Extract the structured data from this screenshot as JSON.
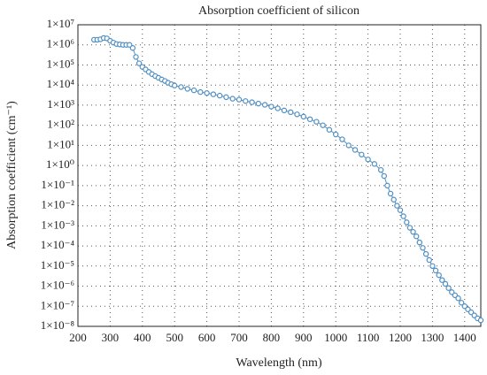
{
  "chart_data": {
    "type": "line",
    "markers": true,
    "title": "Absorption coefficient of silicon",
    "x_label": "Wavelength (nm)",
    "y_label": "Absorption coefficient (cm⁻¹)",
    "y_scale": "log",
    "grid": true,
    "color": "#4f8fc4",
    "x": [
      250,
      260,
      270,
      280,
      290,
      300,
      310,
      320,
      330,
      340,
      350,
      360,
      370,
      380,
      390,
      400,
      410,
      420,
      430,
      440,
      450,
      460,
      470,
      480,
      490,
      500,
      520,
      540,
      560,
      580,
      600,
      620,
      640,
      660,
      680,
      700,
      720,
      740,
      760,
      780,
      800,
      820,
      840,
      860,
      880,
      900,
      920,
      940,
      960,
      980,
      1000,
      1020,
      1040,
      1060,
      1080,
      1100,
      1120,
      1140,
      1150,
      1160,
      1170,
      1180,
      1190,
      1200,
      1210,
      1220,
      1230,
      1240,
      1250,
      1260,
      1270,
      1280,
      1290,
      1300,
      1310,
      1320,
      1330,
      1340,
      1350,
      1360,
      1370,
      1380,
      1390,
      1400,
      1410,
      1420,
      1430,
      1440,
      1450
    ],
    "values": [
      1800000,
      1800000,
      1900000,
      2200000,
      2100000,
      1600000,
      1300000,
      1100000,
      1050000,
      1000000,
      1000000,
      1000000,
      700000,
      250000,
      120000,
      80000,
      60000,
      45000,
      35000,
      28000,
      23000,
      19000,
      16000,
      13000,
      11000,
      9500,
      8000,
      6500,
      5500,
      4500,
      4000,
      3500,
      3000,
      2500,
      2100,
      1900,
      1600,
      1400,
      1200,
      1050,
      850,
      700,
      550,
      450,
      350,
      270,
      200,
      150,
      100,
      60,
      35,
      20,
      10,
      6,
      3.5,
      2,
      1.2,
      0.6,
      0.3,
      0.1,
      0.04,
      0.02,
      0.01,
      0.006,
      0.003,
      0.0015,
      0.0008,
      0.0005,
      0.0003,
      0.00015,
      8e-05,
      4e-05,
      2e-05,
      1e-05,
      6e-06,
      3.5e-06,
      2e-06,
      1.3e-06,
      8e-07,
      5e-07,
      3.5e-07,
      2.5e-07,
      1.5e-07,
      1e-07,
      7e-08,
      5e-08,
      3.5e-08,
      2.5e-08,
      2e-08
    ],
    "xlim": [
      200,
      1450
    ],
    "xticks": [
      200,
      300,
      400,
      500,
      600,
      700,
      800,
      900,
      1000,
      1100,
      1200,
      1300,
      1400
    ],
    "ylim": [
      1e-08,
      10000000.0
    ],
    "yticks": [
      {
        "value": 1e-08,
        "label": "1×10⁻⁸"
      },
      {
        "value": 1e-07,
        "label": "1×10⁻⁷"
      },
      {
        "value": 1e-06,
        "label": "1×10⁻⁶"
      },
      {
        "value": 1e-05,
        "label": "1×10⁻⁵"
      },
      {
        "value": 0.0001,
        "label": "1×10⁻⁴"
      },
      {
        "value": 0.001,
        "label": "1×10⁻³"
      },
      {
        "value": 0.01,
        "label": "1×10⁻²"
      },
      {
        "value": 0.1,
        "label": "1×10⁻¹"
      },
      {
        "value": 1,
        "label": "1×10⁰"
      },
      {
        "value": 10,
        "label": "1×10¹"
      },
      {
        "value": 100,
        "label": "1×10²"
      },
      {
        "value": 1000,
        "label": "1×10³"
      },
      {
        "value": 10000,
        "label": "1×10⁴"
      },
      {
        "value": 100000,
        "label": "1×10⁵"
      },
      {
        "value": 1000000,
        "label": "1×10⁶"
      },
      {
        "value": 10000000,
        "label": "1×10⁷"
      }
    ]
  }
}
